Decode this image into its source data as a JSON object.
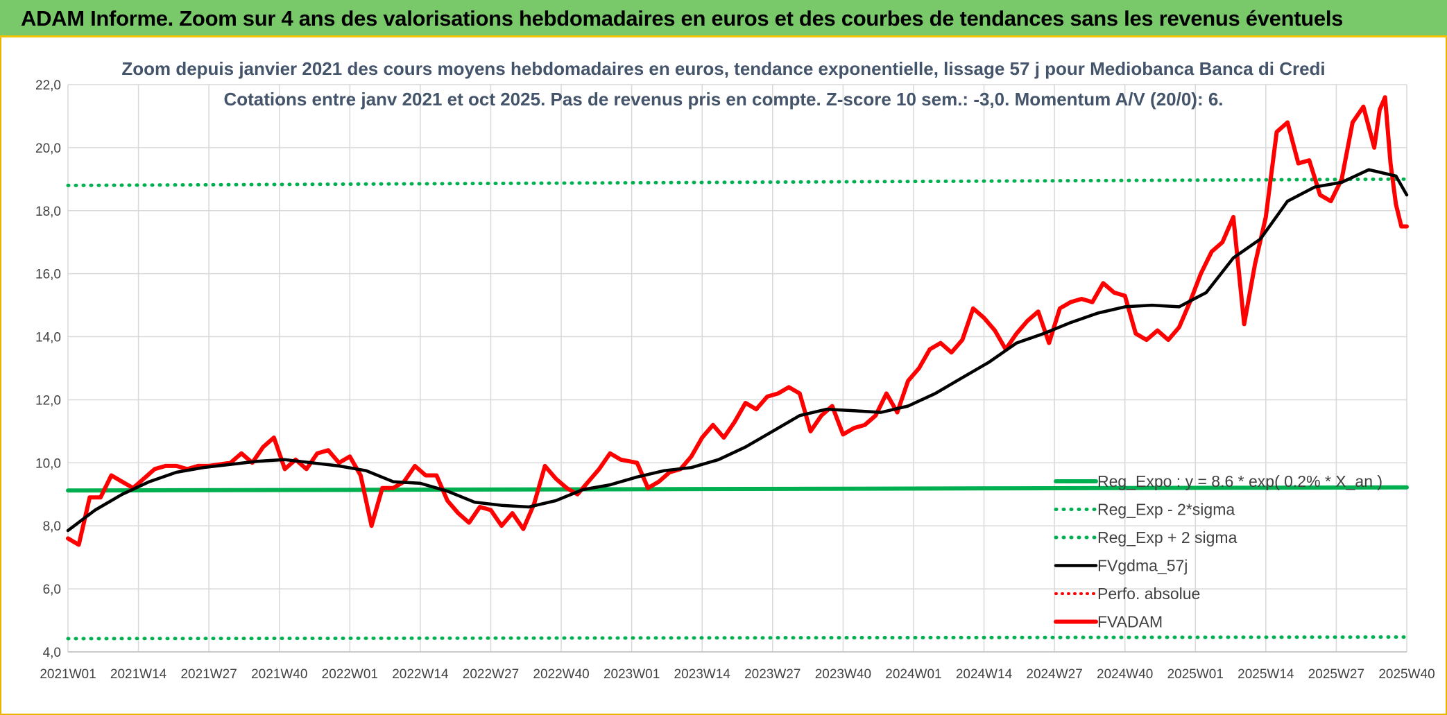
{
  "banner": {
    "title": "ADAM Informe. Zoom sur 4 ans des valorisations hebdomadaires en euros et des courbes de tendances sans les revenus éventuels"
  },
  "colors": {
    "banner": "#79c86a",
    "reg_expo": "#00b050",
    "sigma": "#00b050",
    "ma": "#000000",
    "perfo": "#ff0000",
    "price": "#ff0000"
  },
  "chart_data": {
    "type": "line",
    "title": "Zoom depuis janvier 2021 des cours moyens hebdomadaires en euros, tendance exponentielle, lissage 57 j pour Mediobanca Banca di Credi",
    "subtitle": "Cotations entre janv 2021 et oct 2025. Pas de revenus pris en compte. Z-score 10 sem.: -3,0. Momentum A/V (20/0): 6.",
    "ylim": [
      4,
      22
    ],
    "ytick_labels": [
      "4,0",
      "6,0",
      "8,0",
      "10,0",
      "12,0",
      "14,0",
      "16,0",
      "18,0",
      "20,0",
      "22,0"
    ],
    "x_tick_labels": [
      "2021W01",
      "2021W14",
      "2021W27",
      "2021W40",
      "2022W01",
      "2022W14",
      "2022W27",
      "2022W40",
      "2023W01",
      "2023W14",
      "2023W27",
      "2023W40",
      "2024W01",
      "2024W14",
      "2024W27",
      "2024W40",
      "2025W01",
      "2025W14",
      "2025W27",
      "2025W40"
    ],
    "grid": true,
    "legend_position": "bottom-right",
    "series": [
      {
        "name": "Reg_Expo : y = 8.6 * exp( 0.2% *  X_an )",
        "style": "solid-thick",
        "x": [
          "2021W01",
          "2025W40"
        ],
        "y": [
          9.12,
          9.22
        ]
      },
      {
        "name": "Reg_Exp - 2*sigma",
        "style": "dotted",
        "x": [
          "2021W01",
          "2025W40"
        ],
        "y": [
          4.42,
          4.47
        ]
      },
      {
        "name": "Reg_Exp + 2 sigma",
        "style": "dotted",
        "x": [
          "2021W01",
          "2025W40"
        ],
        "y": [
          18.8,
          19.0
        ]
      },
      {
        "name": "FVgdma_57j",
        "style": "solid",
        "x": [
          "2021W01",
          "2021W06",
          "2021W11",
          "2021W16",
          "2021W21",
          "2021W26",
          "2021W31",
          "2021W36",
          "2021W41",
          "2021W46",
          "2021W51",
          "2022W04",
          "2022W09",
          "2022W14",
          "2022W19",
          "2022W24",
          "2022W29",
          "2022W34",
          "2022W39",
          "2022W44",
          "2022W49",
          "2023W02",
          "2023W07",
          "2023W12",
          "2023W17",
          "2023W22",
          "2023W27",
          "2023W32",
          "2023W37",
          "2023W42",
          "2023W47",
          "2023W52",
          "2024W05",
          "2024W10",
          "2024W15",
          "2024W20",
          "2024W25",
          "2024W30",
          "2024W35",
          "2024W40",
          "2024W45",
          "2024W50",
          "2025W03",
          "2025W08",
          "2025W13",
          "2025W18",
          "2025W23",
          "2025W28",
          "2025W33",
          "2025W38",
          "2025W40"
        ],
        "y": [
          7.85,
          8.5,
          9.0,
          9.4,
          9.7,
          9.85,
          9.95,
          10.05,
          10.1,
          10.0,
          9.9,
          9.75,
          9.4,
          9.35,
          9.1,
          8.75,
          8.65,
          8.6,
          8.8,
          9.15,
          9.3,
          9.55,
          9.75,
          9.85,
          10.1,
          10.5,
          11.0,
          11.5,
          11.7,
          11.65,
          11.6,
          11.8,
          12.2,
          12.7,
          13.2,
          13.8,
          14.1,
          14.45,
          14.75,
          14.95,
          15.0,
          14.95,
          15.4,
          16.5,
          17.1,
          18.3,
          18.75,
          18.9,
          19.3,
          19.1,
          18.5
        ]
      },
      {
        "name": "Perfo. absolue",
        "style": "dotted",
        "x": [],
        "y": []
      },
      {
        "name": "FVADAM",
        "style": "solid-thick",
        "x": [
          "2021W01",
          "2021W03",
          "2021W05",
          "2021W07",
          "2021W09",
          "2021W11",
          "2021W13",
          "2021W15",
          "2021W17",
          "2021W19",
          "2021W21",
          "2021W23",
          "2021W25",
          "2021W27",
          "2021W29",
          "2021W31",
          "2021W33",
          "2021W35",
          "2021W37",
          "2021W39",
          "2021W41",
          "2021W43",
          "2021W45",
          "2021W47",
          "2021W49",
          "2021W51",
          "2022W01",
          "2022W03",
          "2022W05",
          "2022W07",
          "2022W09",
          "2022W11",
          "2022W13",
          "2022W15",
          "2022W17",
          "2022W19",
          "2022W21",
          "2022W23",
          "2022W25",
          "2022W27",
          "2022W29",
          "2022W31",
          "2022W33",
          "2022W35",
          "2022W37",
          "2022W39",
          "2022W41",
          "2022W43",
          "2022W45",
          "2022W47",
          "2022W49",
          "2022W51",
          "2023W02",
          "2023W04",
          "2023W06",
          "2023W08",
          "2023W10",
          "2023W12",
          "2023W14",
          "2023W16",
          "2023W18",
          "2023W20",
          "2023W22",
          "2023W24",
          "2023W26",
          "2023W28",
          "2023W30",
          "2023W32",
          "2023W34",
          "2023W36",
          "2023W38",
          "2023W40",
          "2023W42",
          "2023W44",
          "2023W46",
          "2023W48",
          "2023W50",
          "2023W52",
          "2024W02",
          "2024W04",
          "2024W06",
          "2024W08",
          "2024W10",
          "2024W12",
          "2024W14",
          "2024W16",
          "2024W18",
          "2024W20",
          "2024W22",
          "2024W24",
          "2024W26",
          "2024W28",
          "2024W30",
          "2024W32",
          "2024W34",
          "2024W36",
          "2024W38",
          "2024W40",
          "2024W42",
          "2024W44",
          "2024W46",
          "2024W48",
          "2024W50",
          "2024W52",
          "2025W02",
          "2025W04",
          "2025W06",
          "2025W08",
          "2025W10",
          "2025W12",
          "2025W14",
          "2025W16",
          "2025W18",
          "2025W20",
          "2025W22",
          "2025W24",
          "2025W26",
          "2025W28",
          "2025W30",
          "2025W32",
          "2025W34",
          "2025W35",
          "2025W36",
          "2025W37",
          "2025W38",
          "2025W39",
          "2025W40"
        ],
        "y": [
          7.6,
          7.4,
          8.9,
          8.9,
          9.6,
          9.4,
          9.2,
          9.5,
          9.8,
          9.9,
          9.9,
          9.8,
          9.9,
          9.9,
          9.95,
          10.0,
          10.3,
          10.0,
          10.5,
          10.8,
          9.8,
          10.1,
          9.8,
          10.3,
          10.4,
          10.0,
          10.2,
          9.6,
          8.0,
          9.2,
          9.2,
          9.4,
          9.9,
          9.6,
          9.6,
          8.8,
          8.4,
          8.1,
          8.6,
          8.5,
          8.0,
          8.4,
          7.9,
          8.7,
          9.9,
          9.5,
          9.2,
          9.0,
          9.4,
          9.8,
          10.3,
          10.1,
          10.0,
          9.2,
          9.4,
          9.7,
          9.8,
          10.2,
          10.8,
          11.2,
          10.8,
          11.3,
          11.9,
          11.7,
          12.1,
          12.2,
          12.4,
          12.2,
          11.0,
          11.5,
          11.8,
          10.9,
          11.1,
          11.2,
          11.5,
          12.2,
          11.6,
          12.6,
          13.0,
          13.6,
          13.8,
          13.5,
          13.9,
          14.9,
          14.6,
          14.2,
          13.6,
          14.1,
          14.5,
          14.8,
          13.8,
          14.9,
          15.1,
          15.2,
          15.1,
          15.7,
          15.4,
          15.3,
          14.1,
          13.9,
          14.2,
          13.9,
          14.3,
          15.1,
          16.0,
          16.7,
          17.0,
          17.8,
          14.4,
          16.3,
          17.8,
          20.5,
          20.8,
          19.5,
          19.6,
          18.5,
          18.3,
          19.0,
          20.8,
          21.3,
          20.0,
          21.2,
          21.6,
          19.5,
          18.2,
          17.5,
          17.5
        ]
      }
    ]
  }
}
